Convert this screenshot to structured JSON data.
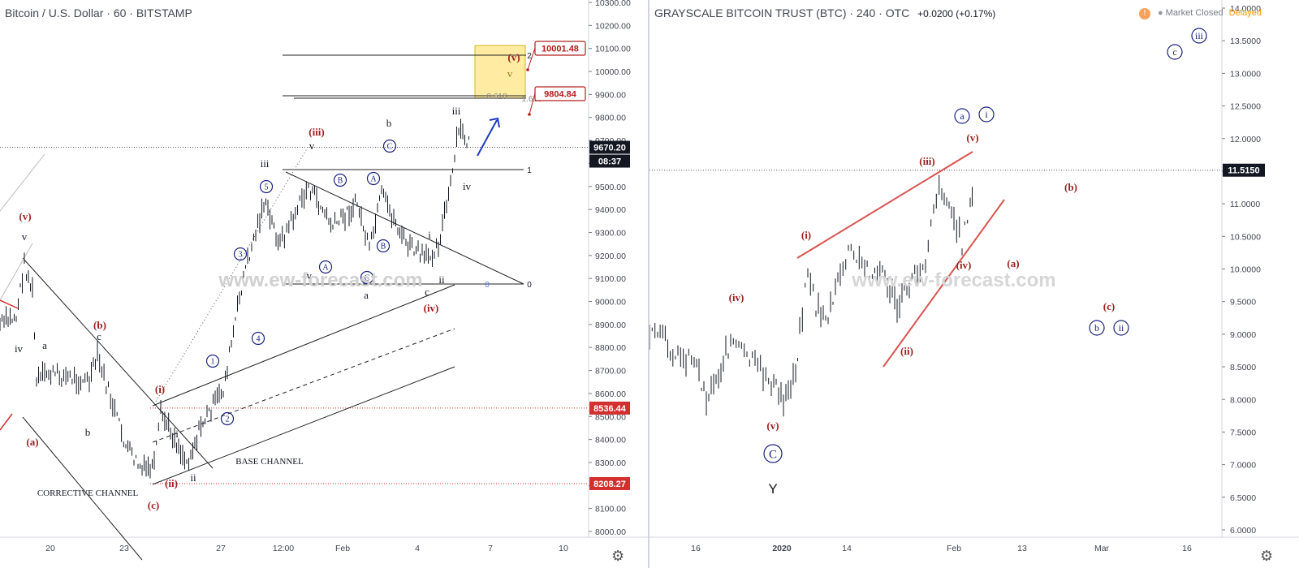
{
  "left_chart": {
    "header": "Bitcoin / U.S. Dollar · 60 · BITSTAMP",
    "price_ticks": [
      "10300.00",
      "10200.00",
      "10100.00",
      "10000.00",
      "9900.00",
      "9800.00",
      "9700.00",
      "9600.00",
      "9500.00",
      "9400.00",
      "9300.00",
      "9200.00",
      "9100.00",
      "9000.00",
      "8900.00",
      "8800.00",
      "8700.00",
      "8600.00",
      "8500.00",
      "8400.00",
      "8300.00",
      "8200.00",
      "8100.00",
      "8000.00"
    ],
    "time_ticks": [
      "20",
      "23",
      "27",
      "12:00",
      "Feb",
      "4",
      "7",
      "10"
    ],
    "price_tags": [
      {
        "label": "9670.20",
        "bg": "#131722"
      },
      {
        "label": "08:37",
        "bg": "#131722"
      },
      {
        "label": "8536.44",
        "bg": "#d32f2f"
      },
      {
        "label": "8208.27",
        "bg": "#d32f2f"
      }
    ],
    "target_labels": [
      "10001.48",
      "9804.84"
    ],
    "fib_labels": [
      "2",
      "1.618",
      "0.618",
      "1",
      "0"
    ],
    "channel_labels": [
      "BASE CHANNEL",
      "CORRECTIVE CHANNEL"
    ],
    "wave_labels_red": [
      "(v)",
      "(b)",
      "(a)",
      "(i)",
      "(ii)",
      "(c)",
      "(iii)",
      "(iv)",
      "(v)"
    ],
    "wave_labels_black": [
      "v",
      "iv",
      "a",
      "c",
      "b",
      "i",
      "ii",
      "iii",
      "v",
      "iv",
      "a",
      "b",
      "c",
      "ii",
      "i",
      "iii",
      "iv",
      "v"
    ],
    "wave_labels_circled": [
      "1",
      "2",
      "3",
      "4",
      "5",
      "A",
      "B",
      "C",
      "A",
      "B",
      "C"
    ]
  },
  "right_chart": {
    "header": "GRAYSCALE BITCOIN TRUST (BTC) · 240 · OTC",
    "change": "+0.0200 (+0.17%)",
    "status": "Market Closed",
    "delayed": "Delayed",
    "price_ticks": [
      "14.0000",
      "13.5000",
      "13.0000",
      "12.5000",
      "12.0000",
      "11.5000",
      "11.0000",
      "10.5000",
      "10.0000",
      "9.5000",
      "9.0000",
      "8.5000",
      "8.0000",
      "7.5000",
      "7.0000",
      "6.5000",
      "6.0000"
    ],
    "time_ticks": [
      "16",
      "2020",
      "14",
      "Feb",
      "13",
      "Mar",
      "16"
    ],
    "price_tag": {
      "label": "11.5150",
      "bg": "#131722"
    },
    "wave_labels_red": [
      "(i)",
      "(ii)",
      "(iii)",
      "(iv)",
      "(v)",
      "(iv)",
      "(v)",
      "(a)",
      "(b)",
      "(c)"
    ],
    "wave_labels_black": [
      "Y"
    ],
    "wave_labels_circled": [
      "C",
      "a",
      "i",
      "c",
      "iii",
      "b",
      "ii"
    ]
  },
  "watermark": "www.ew-forecast.com",
  "colors": {
    "red_label": "#9c1f1f",
    "circle_blue": "#1a237e",
    "trend_red": "#d9534f",
    "target_box": "#ffeb99",
    "arrow": "#1a3bc1"
  },
  "chart_data": [
    {
      "type": "line",
      "title": "Bitcoin / U.S. Dollar · 60 · BITSTAMP",
      "xlabel": "",
      "ylabel": "",
      "ylim": [
        8000,
        10300
      ],
      "x": [
        "20",
        "23",
        "27",
        "12:00",
        "Feb",
        "4",
        "7"
      ],
      "series": [
        {
          "values": [
            8850,
            8300,
            8650,
            9350,
            9250,
            9150,
            9670
          ]
        }
      ],
      "last_price": 9670.2,
      "levels": {
        "target_high": 10001.48,
        "target_low": 9804.84,
        "support_high": 8536.44,
        "support_low": 8208.27
      }
    },
    {
      "type": "line",
      "title": "GRAYSCALE BITCOIN TRUST (BTC) · 240 · OTC",
      "xlabel": "",
      "ylabel": "",
      "ylim": [
        6.0,
        14.0
      ],
      "x": [
        "16",
        "2020",
        "14",
        "Feb"
      ],
      "series": [
        {
          "values": [
            8.7,
            8.2,
            10.0,
            11.5
          ]
        }
      ],
      "last_price": 11.515
    }
  ]
}
